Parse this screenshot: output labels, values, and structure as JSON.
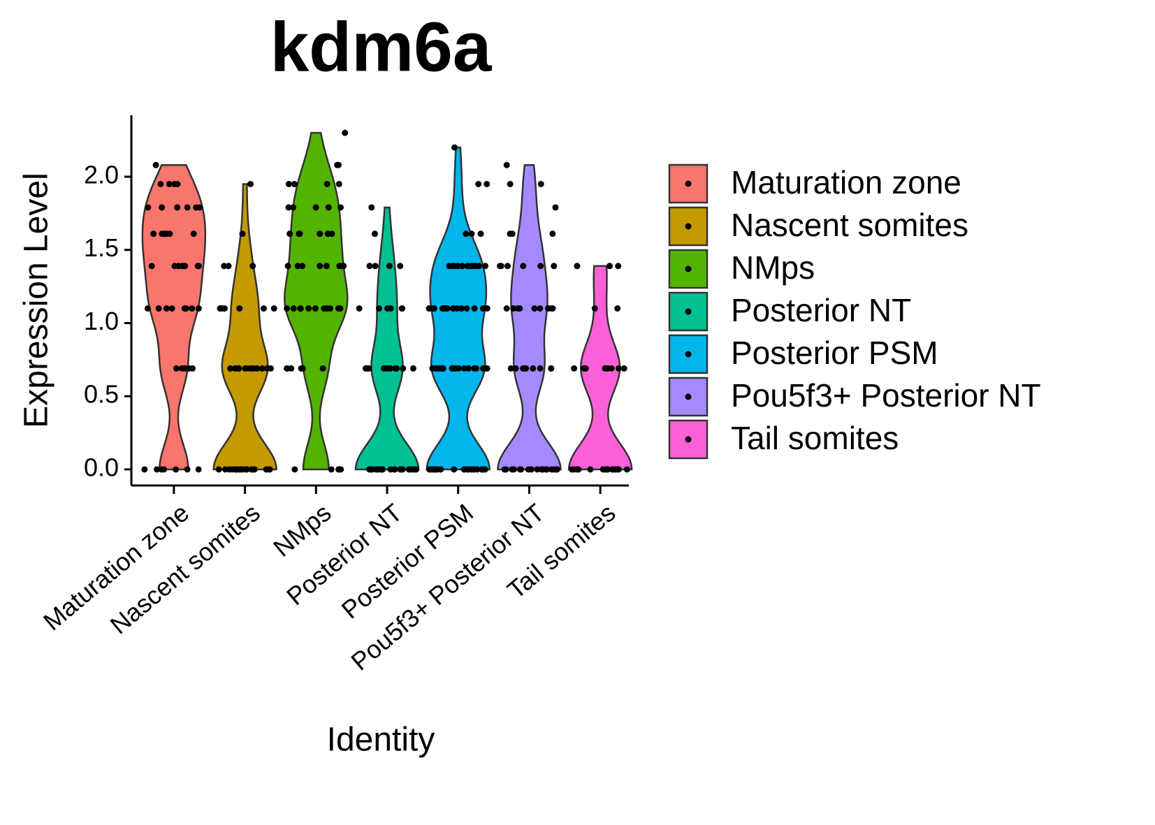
{
  "chart_data": {
    "type": "violin",
    "title": "kdm6a",
    "x_label": "Identity",
    "y_label": "Expression Level",
    "ylim": [
      -0.11,
      2.42
    ],
    "yticks": [
      {
        "value": 0,
        "label": "0.0"
      },
      {
        "value": 0.5,
        "label": "0.5"
      },
      {
        "value": 1,
        "label": "1.0"
      },
      {
        "value": 1.5,
        "label": "1.5"
      },
      {
        "value": 2,
        "label": "2.0"
      }
    ],
    "categories": [
      "Maturation zone",
      "Nascent somites",
      "NMps",
      "Posterior NT",
      "Posterior PSM",
      "Pou5f3+ Posterior NT",
      "Tail somites"
    ],
    "series": [
      {
        "name": "Maturation zone",
        "color": "#F8766D",
        "values": [
          0,
          0,
          0,
          0,
          0,
          0,
          0,
          0.69,
          0.69,
          0.69,
          0.69,
          0.69,
          0.69,
          1.1,
          1.1,
          1.1,
          1.1,
          1.1,
          1.1,
          1.1,
          1.1,
          1.1,
          1.39,
          1.39,
          1.39,
          1.39,
          1.39,
          1.39,
          1.39,
          1.39,
          1.61,
          1.61,
          1.61,
          1.61,
          1.61,
          1.61,
          1.61,
          1.79,
          1.79,
          1.79,
          1.79,
          1.79,
          1.79,
          1.95,
          1.95,
          1.95,
          1.95,
          2.08
        ]
      },
      {
        "name": "Nascent somites",
        "color": "#C49A00",
        "values": [
          0,
          0,
          0,
          0,
          0,
          0,
          0,
          0,
          0,
          0,
          0,
          0,
          0,
          0,
          0,
          0,
          0,
          0,
          0,
          0,
          0.69,
          0.69,
          0.69,
          0.69,
          0.69,
          0.69,
          0.69,
          0.69,
          0.69,
          0.69,
          0.69,
          0.69,
          0.69,
          0.69,
          1.1,
          1.1,
          1.1,
          1.1,
          1.1,
          1.1,
          1.1,
          1.39,
          1.39,
          1.39,
          1.61,
          1.95
        ]
      },
      {
        "name": "NMps",
        "color": "#53B400",
        "values": [
          0,
          0,
          0,
          0,
          0,
          0,
          0,
          0.69,
          0.69,
          0.69,
          0.69,
          0.69,
          0.69,
          1.1,
          1.1,
          1.1,
          1.1,
          1.1,
          1.1,
          1.1,
          1.1,
          1.1,
          1.1,
          1.1,
          1.1,
          1.1,
          1.1,
          1.39,
          1.39,
          1.39,
          1.39,
          1.39,
          1.39,
          1.39,
          1.39,
          1.61,
          1.61,
          1.61,
          1.61,
          1.61,
          1.61,
          1.79,
          1.79,
          1.79,
          1.79,
          1.79,
          1.95,
          1.95,
          1.95,
          1.95,
          2.08,
          2.08,
          2.3
        ]
      },
      {
        "name": "Posterior NT",
        "color": "#00C094",
        "values": [
          0,
          0,
          0,
          0,
          0,
          0,
          0,
          0,
          0,
          0,
          0,
          0,
          0,
          0,
          0,
          0,
          0,
          0,
          0,
          0,
          0,
          0,
          0,
          0,
          0,
          0.69,
          0.69,
          0.69,
          0.69,
          0.69,
          0.69,
          0.69,
          0.69,
          0.69,
          0.69,
          0.69,
          0.69,
          1.1,
          1.1,
          1.1,
          1.1,
          1.1,
          1.1,
          1.39,
          1.39,
          1.39,
          1.39,
          1.61,
          1.79
        ]
      },
      {
        "name": "Posterior PSM",
        "color": "#00B6EB",
        "values": [
          0,
          0,
          0,
          0,
          0,
          0,
          0,
          0,
          0,
          0,
          0,
          0,
          0,
          0,
          0,
          0,
          0,
          0,
          0,
          0,
          0,
          0,
          0,
          0,
          0,
          0.69,
          0.69,
          0.69,
          0.69,
          0.69,
          0.69,
          0.69,
          0.69,
          0.69,
          0.69,
          0.69,
          0.69,
          0.69,
          0.69,
          0.69,
          0.69,
          0.69,
          0.69,
          0.69,
          0.69,
          1.1,
          1.1,
          1.1,
          1.1,
          1.1,
          1.1,
          1.1,
          1.1,
          1.1,
          1.1,
          1.1,
          1.1,
          1.1,
          1.1,
          1.1,
          1.1,
          1.39,
          1.39,
          1.39,
          1.39,
          1.39,
          1.39,
          1.39,
          1.39,
          1.39,
          1.39,
          1.39,
          1.39,
          1.39,
          1.39,
          1.61,
          1.61,
          1.61,
          1.95,
          1.95,
          2.2
        ]
      },
      {
        "name": "Pou5f3+ Posterior NT",
        "color": "#A58AFF",
        "values": [
          0,
          0,
          0,
          0,
          0,
          0,
          0,
          0,
          0,
          0,
          0,
          0,
          0,
          0,
          0,
          0,
          0,
          0,
          0,
          0,
          0.69,
          0.69,
          0.69,
          0.69,
          0.69,
          0.69,
          0.69,
          0.69,
          0.69,
          1.1,
          1.1,
          1.1,
          1.1,
          1.1,
          1.1,
          1.1,
          1.1,
          1.1,
          1.39,
          1.39,
          1.39,
          1.39,
          1.39,
          1.39,
          1.61,
          1.61,
          1.61,
          1.79,
          1.95,
          1.95,
          2.08
        ]
      },
      {
        "name": "Tail somites",
        "color": "#FB61D7",
        "values": [
          0,
          0,
          0,
          0,
          0,
          0,
          0,
          0,
          0,
          0,
          0,
          0,
          0,
          0,
          0,
          0,
          0,
          0,
          0.69,
          0.69,
          0.69,
          0.69,
          0.69,
          0.69,
          0.69,
          0.69,
          0.69,
          0.69,
          0.69,
          1.1,
          1.1,
          1.39,
          1.39,
          1.39
        ]
      }
    ]
  }
}
